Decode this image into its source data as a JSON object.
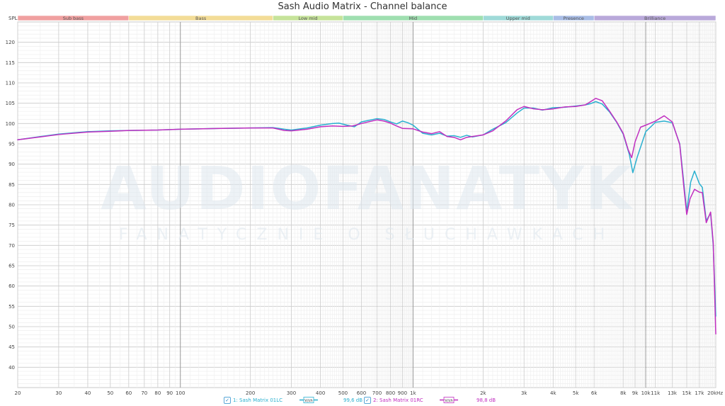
{
  "chart_data": {
    "type": "line",
    "title": "Sash Audio Matrix - Channel balance",
    "ylabel": "SPL",
    "xlim": [
      20,
      20000
    ],
    "ylim": [
      35,
      125
    ],
    "x_scale": "log",
    "grid": true,
    "y_ticks": [
      40,
      45,
      50,
      55,
      60,
      65,
      70,
      75,
      80,
      85,
      90,
      95,
      100,
      105,
      110,
      115,
      120
    ],
    "x_ticks": [
      {
        "f": 20,
        "label": "20"
      },
      {
        "f": 30,
        "label": "30"
      },
      {
        "f": 40,
        "label": "40"
      },
      {
        "f": 50,
        "label": "50"
      },
      {
        "f": 60,
        "label": "60"
      },
      {
        "f": 70,
        "label": "70"
      },
      {
        "f": 80,
        "label": "80"
      },
      {
        "f": 90,
        "label": "90"
      },
      {
        "f": 100,
        "label": "100"
      },
      {
        "f": 200,
        "label": "200"
      },
      {
        "f": 300,
        "label": "300"
      },
      {
        "f": 400,
        "label": "400"
      },
      {
        "f": 500,
        "label": "500"
      },
      {
        "f": 600,
        "label": "600"
      },
      {
        "f": 700,
        "label": "700"
      },
      {
        "f": 800,
        "label": "800"
      },
      {
        "f": 900,
        "label": "900"
      },
      {
        "f": 1000,
        "label": "1k"
      },
      {
        "f": 2000,
        "label": "2k"
      },
      {
        "f": 3000,
        "label": "3k"
      },
      {
        "f": 4000,
        "label": "4k"
      },
      {
        "f": 5000,
        "label": "5k"
      },
      {
        "f": 6000,
        "label": "6k"
      },
      {
        "f": 8000,
        "label": "8k"
      },
      {
        "f": 9000,
        "label": "9k"
      },
      {
        "f": 10000,
        "label": "10k"
      },
      {
        "f": 11000,
        "label": "11k"
      },
      {
        "f": 13000,
        "label": "13k"
      },
      {
        "f": 15000,
        "label": "15k"
      },
      {
        "f": 17000,
        "label": "17k"
      },
      {
        "f": 20000,
        "label": "20kHz"
      }
    ],
    "bands": [
      {
        "label": "Sub bass",
        "from": 20,
        "to": 60,
        "color": "#f0a0a0"
      },
      {
        "label": "Bass",
        "from": 60,
        "to": 250,
        "color": "#f3dc97"
      },
      {
        "label": "Low mid",
        "from": 250,
        "to": 500,
        "color": "#c6e39a"
      },
      {
        "label": "Mid",
        "from": 500,
        "to": 2000,
        "color": "#9fdfb0"
      },
      {
        "label": "Upper mid",
        "from": 2000,
        "to": 4000,
        "color": "#9fdad8"
      },
      {
        "label": "Presence",
        "from": 4000,
        "to": 6000,
        "color": "#a9bde6"
      },
      {
        "label": "Brilliance",
        "from": 6000,
        "to": 20000,
        "color": "#b9a9da"
      }
    ],
    "series": [
      {
        "name": "1: Sash Matrix 01LC",
        "color": "#2ab0d0",
        "level": "99,6 dB",
        "points": [
          [
            20,
            96.0
          ],
          [
            25,
            96.8
          ],
          [
            30,
            97.4
          ],
          [
            40,
            98.0
          ],
          [
            50,
            98.2
          ],
          [
            60,
            98.3
          ],
          [
            80,
            98.4
          ],
          [
            100,
            98.6
          ],
          [
            150,
            98.8
          ],
          [
            200,
            98.9
          ],
          [
            250,
            99.0
          ],
          [
            280,
            98.6
          ],
          [
            300,
            98.4
          ],
          [
            350,
            98.9
          ],
          [
            400,
            99.6
          ],
          [
            450,
            100.0
          ],
          [
            480,
            100.1
          ],
          [
            520,
            99.6
          ],
          [
            560,
            99.2
          ],
          [
            600,
            100.4
          ],
          [
            700,
            101.2
          ],
          [
            750,
            101.0
          ],
          [
            800,
            100.4
          ],
          [
            850,
            99.9
          ],
          [
            900,
            100.6
          ],
          [
            950,
            100.2
          ],
          [
            1000,
            99.6
          ],
          [
            1100,
            97.6
          ],
          [
            1200,
            97.2
          ],
          [
            1300,
            97.6
          ],
          [
            1400,
            96.9
          ],
          [
            1500,
            97.0
          ],
          [
            1600,
            96.6
          ],
          [
            1700,
            97.1
          ],
          [
            1800,
            96.7
          ],
          [
            2000,
            97.2
          ],
          [
            2200,
            98.6
          ],
          [
            2500,
            100.2
          ],
          [
            2800,
            102.6
          ],
          [
            3000,
            103.8
          ],
          [
            3300,
            103.8
          ],
          [
            3600,
            103.3
          ],
          [
            4000,
            103.9
          ],
          [
            4500,
            104.0
          ],
          [
            5000,
            104.3
          ],
          [
            5500,
            104.6
          ],
          [
            5800,
            104.9
          ],
          [
            6100,
            105.4
          ],
          [
            6500,
            104.8
          ],
          [
            7000,
            102.8
          ],
          [
            7500,
            100.3
          ],
          [
            8000,
            97.4
          ],
          [
            8500,
            92.4
          ],
          [
            8800,
            87.9
          ],
          [
            9200,
            91.8
          ],
          [
            10000,
            98.0
          ],
          [
            11000,
            100.3
          ],
          [
            12000,
            100.6
          ],
          [
            13000,
            100.2
          ],
          [
            14000,
            95.0
          ],
          [
            14600,
            85.0
          ],
          [
            15000,
            78.3
          ],
          [
            15600,
            85.6
          ],
          [
            16200,
            88.3
          ],
          [
            17000,
            85.2
          ],
          [
            17500,
            84.3
          ],
          [
            18200,
            76.1
          ],
          [
            19000,
            77.9
          ],
          [
            19500,
            70.0
          ],
          [
            20000,
            52.6
          ]
        ]
      },
      {
        "name": "2: Sash Matrix 01RC",
        "color": "#c12fc0",
        "level": "98,8 dB",
        "points": [
          [
            20,
            96.0
          ],
          [
            25,
            96.7
          ],
          [
            30,
            97.3
          ],
          [
            40,
            97.9
          ],
          [
            50,
            98.1
          ],
          [
            60,
            98.3
          ],
          [
            80,
            98.4
          ],
          [
            100,
            98.6
          ],
          [
            150,
            98.8
          ],
          [
            200,
            98.9
          ],
          [
            250,
            98.9
          ],
          [
            280,
            98.3
          ],
          [
            300,
            98.2
          ],
          [
            350,
            98.6
          ],
          [
            400,
            99.2
          ],
          [
            450,
            99.4
          ],
          [
            500,
            99.3
          ],
          [
            550,
            99.4
          ],
          [
            600,
            100.0
          ],
          [
            700,
            100.9
          ],
          [
            750,
            100.6
          ],
          [
            800,
            100.1
          ],
          [
            850,
            99.4
          ],
          [
            900,
            98.8
          ],
          [
            1000,
            98.7
          ],
          [
            1100,
            97.9
          ],
          [
            1200,
            97.5
          ],
          [
            1300,
            98.0
          ],
          [
            1400,
            96.8
          ],
          [
            1500,
            96.6
          ],
          [
            1600,
            96.0
          ],
          [
            1700,
            96.6
          ],
          [
            1800,
            96.8
          ],
          [
            2000,
            97.2
          ],
          [
            2200,
            98.2
          ],
          [
            2500,
            100.6
          ],
          [
            2800,
            103.4
          ],
          [
            3000,
            104.2
          ],
          [
            3300,
            103.6
          ],
          [
            3600,
            103.4
          ],
          [
            4000,
            103.6
          ],
          [
            4500,
            104.1
          ],
          [
            5000,
            104.2
          ],
          [
            5500,
            104.6
          ],
          [
            5800,
            105.4
          ],
          [
            6100,
            106.2
          ],
          [
            6500,
            105.6
          ],
          [
            7000,
            103.0
          ],
          [
            7500,
            100.4
          ],
          [
            8000,
            97.6
          ],
          [
            8400,
            93.6
          ],
          [
            8700,
            91.6
          ],
          [
            9000,
            95.5
          ],
          [
            9500,
            99.1
          ],
          [
            10000,
            99.6
          ],
          [
            11000,
            100.6
          ],
          [
            12000,
            101.9
          ],
          [
            13000,
            100.4
          ],
          [
            14000,
            94.8
          ],
          [
            14600,
            84.0
          ],
          [
            15000,
            77.6
          ],
          [
            15500,
            81.5
          ],
          [
            16200,
            83.8
          ],
          [
            17000,
            83.1
          ],
          [
            17500,
            83.0
          ],
          [
            18200,
            75.6
          ],
          [
            19000,
            78.2
          ],
          [
            19500,
            70.6
          ],
          [
            20000,
            48.2
          ]
        ]
      }
    ]
  },
  "watermark": {
    "brand": "AUDIOFANATYK",
    "tagline": "FANATYCZNIE O SŁUCHAWKACH"
  },
  "legend": {
    "check_glyph": "✓",
    "sym_label": "V/ch"
  }
}
